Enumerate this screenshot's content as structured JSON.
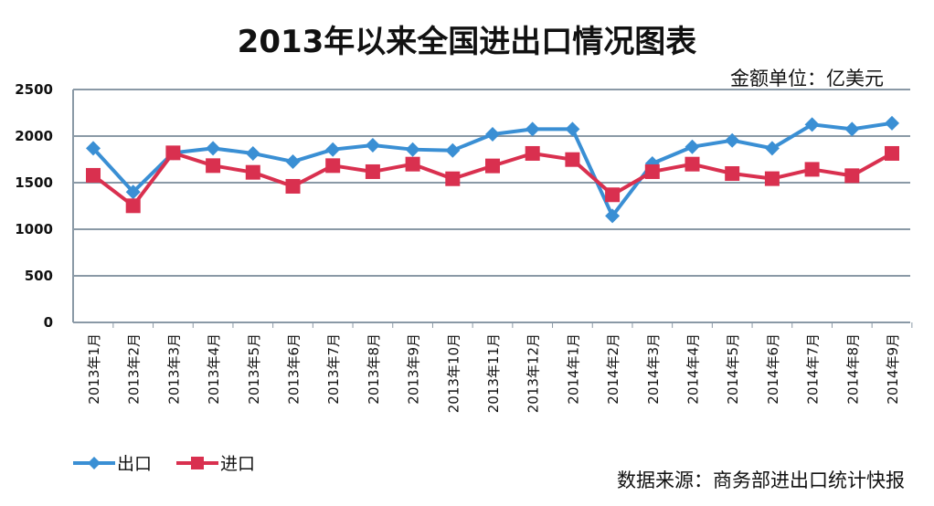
{
  "chart_data": {
    "type": "line",
    "title": "2013年以来全国进出口情况图表",
    "unit_label": "金额单位：亿美元",
    "source": "数据来源：商务部进出口统计快报",
    "categories": [
      "2013年1月",
      "2013年2月",
      "2013年3月",
      "2013年4月",
      "2013年5月",
      "2013年6月",
      "2013年7月",
      "2013年8月",
      "2013年9月",
      "2013年10月",
      "2013年11月",
      "2013年12月",
      "2014年1月",
      "2014年2月",
      "2014年3月",
      "2014年4月",
      "2014年5月",
      "2014年6月",
      "2014年7月",
      "2014年8月",
      "2014年9月"
    ],
    "yticks": [
      "0",
      "500",
      "1000",
      "1500",
      "2000",
      "2500"
    ],
    "ylim": [
      0,
      2500
    ],
    "grid": true,
    "legend_position": "bottom-left",
    "series": [
      {
        "name": "出口",
        "color": "#3a8fd4",
        "marker": "diamond",
        "values": [
          1869,
          1400,
          1820,
          1869,
          1814,
          1726,
          1856,
          1902,
          1856,
          1846,
          2020,
          2075,
          2075,
          1143,
          1706,
          1885,
          1954,
          1869,
          2124,
          2075,
          2139
        ]
      },
      {
        "name": "进口",
        "color": "#d9304f",
        "marker": "square",
        "values": [
          1579,
          1252,
          1820,
          1683,
          1611,
          1461,
          1683,
          1618,
          1699,
          1542,
          1680,
          1814,
          1748,
          1370,
          1618,
          1699,
          1598,
          1543,
          1643,
          1575,
          1814
        ]
      }
    ]
  }
}
